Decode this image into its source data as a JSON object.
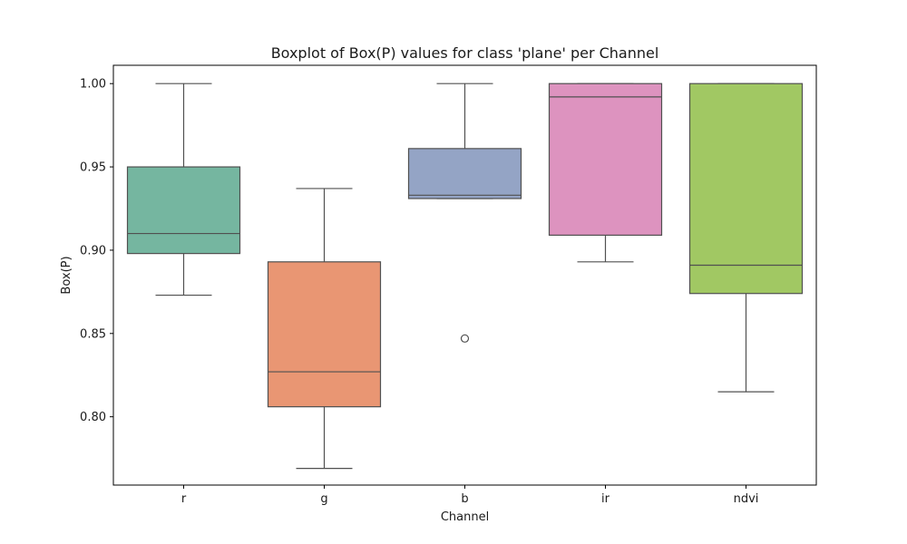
{
  "chart_data": {
    "type": "box",
    "title": "Boxplot of Box(P) values for class 'plane' per Channel",
    "xlabel": "Channel",
    "ylabel": "Box(P)",
    "ylim": [
      0.759,
      1.011
    ],
    "yticks": [
      0.8,
      0.85,
      0.9,
      0.95,
      1.0
    ],
    "ytick_labels": [
      "0.80",
      "0.85",
      "0.90",
      "0.95",
      "1.00"
    ],
    "grid": false,
    "legend": "none",
    "categories": [
      "r",
      "g",
      "b",
      "ir",
      "ndvi"
    ],
    "boxes": [
      {
        "category": "r",
        "whisker_low": 0.873,
        "q1": 0.898,
        "median": 0.91,
        "q3": 0.95,
        "whisker_high": 1.0,
        "outliers": [],
        "color": "#75b6a0"
      },
      {
        "category": "g",
        "whisker_low": 0.769,
        "q1": 0.806,
        "median": 0.827,
        "q3": 0.893,
        "whisker_high": 0.937,
        "outliers": [],
        "color": "#e99673"
      },
      {
        "category": "b",
        "whisker_low": 0.931,
        "q1": 0.931,
        "median": 0.933,
        "q3": 0.961,
        "whisker_high": 1.0,
        "outliers": [
          0.847
        ],
        "color": "#94a4c5"
      },
      {
        "category": "ir",
        "whisker_low": 0.893,
        "q1": 0.909,
        "median": 0.992,
        "q3": 1.0,
        "whisker_high": 1.0,
        "outliers": [],
        "color": "#dd93bf"
      },
      {
        "category": "ndvi",
        "whisker_low": 0.815,
        "q1": 0.874,
        "median": 0.891,
        "q3": 1.0,
        "whisker_high": 1.0,
        "outliers": [],
        "color": "#a1c863"
      }
    ],
    "line_color": "#505050"
  }
}
